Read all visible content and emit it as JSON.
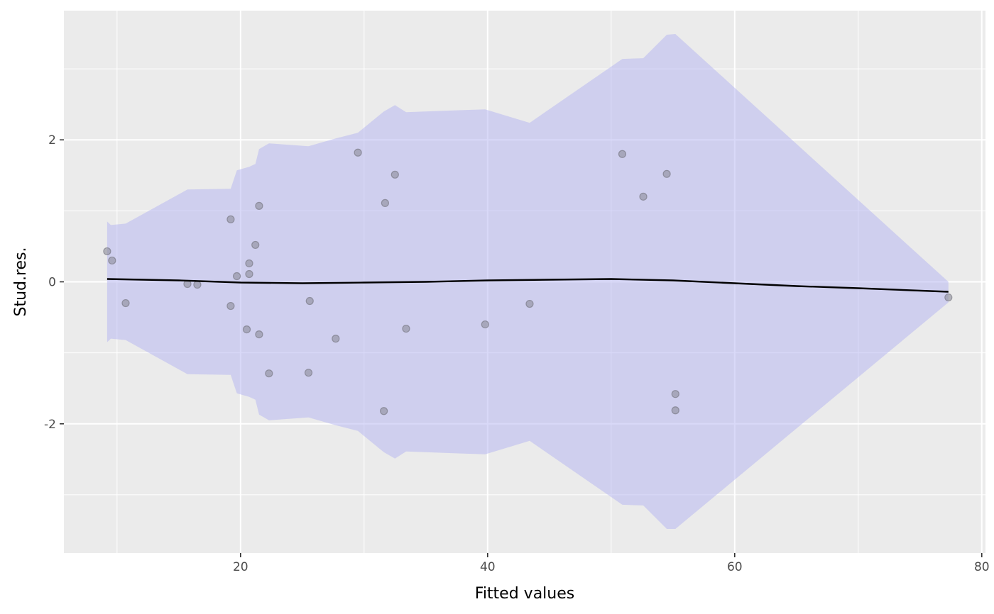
{
  "chart_data": {
    "type": "scatter",
    "title": "",
    "xlabel": "Fitted values",
    "ylabel": "Stud.res.",
    "xlim": [
      5.7,
      80.3
    ],
    "ylim": [
      -3.82,
      3.82
    ],
    "x_ticks": [
      {
        "value": 20,
        "label": "20"
      },
      {
        "value": 40,
        "label": "40"
      },
      {
        "value": 60,
        "label": "60"
      },
      {
        "value": 80,
        "label": "80"
      }
    ],
    "y_ticks": [
      {
        "value": -2,
        "label": "-2"
      },
      {
        "value": 0,
        "label": "0"
      },
      {
        "value": 2,
        "label": "2"
      }
    ],
    "x_minor_breaks": [
      10,
      30,
      50,
      70
    ],
    "y_minor_breaks": [
      -3,
      -1,
      1,
      3
    ],
    "grid": true,
    "colors": {
      "panel_background": "#ebebeb",
      "grid": "#ffffff",
      "points": "#8c8c99",
      "points_stroke": "#6f6f7a",
      "smooth_line": "#000000",
      "confidence_band": "#b3b3f2"
    },
    "points": [
      {
        "x": 9.2,
        "y": 0.43
      },
      {
        "x": 9.6,
        "y": 0.3
      },
      {
        "x": 10.7,
        "y": -0.3
      },
      {
        "x": 15.7,
        "y": -0.03
      },
      {
        "x": 16.5,
        "y": -0.04
      },
      {
        "x": 19.2,
        "y": 0.88
      },
      {
        "x": 19.2,
        "y": -0.34
      },
      {
        "x": 19.7,
        "y": 0.08
      },
      {
        "x": 20.5,
        "y": -0.67
      },
      {
        "x": 20.7,
        "y": 0.26
      },
      {
        "x": 20.7,
        "y": 0.11
      },
      {
        "x": 21.2,
        "y": 0.52
      },
      {
        "x": 21.5,
        "y": 1.07
      },
      {
        "x": 21.5,
        "y": -0.74
      },
      {
        "x": 22.3,
        "y": -1.29
      },
      {
        "x": 25.5,
        "y": -1.28
      },
      {
        "x": 25.6,
        "y": -0.27
      },
      {
        "x": 27.7,
        "y": -0.8
      },
      {
        "x": 29.5,
        "y": 1.82
      },
      {
        "x": 31.6,
        "y": -1.82
      },
      {
        "x": 31.7,
        "y": 1.11
      },
      {
        "x": 32.5,
        "y": 1.51
      },
      {
        "x": 33.4,
        "y": -0.66
      },
      {
        "x": 39.8,
        "y": -0.6
      },
      {
        "x": 43.4,
        "y": -0.31
      },
      {
        "x": 50.9,
        "y": 1.8
      },
      {
        "x": 52.6,
        "y": 1.2
      },
      {
        "x": 54.5,
        "y": 1.52
      },
      {
        "x": 55.2,
        "y": -1.58
      },
      {
        "x": 55.2,
        "y": -1.81
      },
      {
        "x": 77.3,
        "y": -0.22
      }
    ],
    "smooth_line": [
      {
        "x": 9.2,
        "y": 0.04
      },
      {
        "x": 15.0,
        "y": 0.02
      },
      {
        "x": 20.0,
        "y": -0.01
      },
      {
        "x": 25.0,
        "y": -0.02
      },
      {
        "x": 30.0,
        "y": -0.01
      },
      {
        "x": 35.0,
        "y": 0.0
      },
      {
        "x": 40.0,
        "y": 0.02
      },
      {
        "x": 45.0,
        "y": 0.03
      },
      {
        "x": 50.0,
        "y": 0.04
      },
      {
        "x": 55.0,
        "y": 0.02
      },
      {
        "x": 60.0,
        "y": -0.02
      },
      {
        "x": 65.0,
        "y": -0.06
      },
      {
        "x": 70.0,
        "y": -0.09
      },
      {
        "x": 77.3,
        "y": -0.14
      }
    ],
    "band_upper": [
      {
        "x": 9.2,
        "y": 0.85
      },
      {
        "x": 9.5,
        "y": 0.8
      },
      {
        "x": 10.7,
        "y": 0.82
      },
      {
        "x": 15.7,
        "y": 1.3
      },
      {
        "x": 19.2,
        "y": 1.31
      },
      {
        "x": 19.7,
        "y": 1.57
      },
      {
        "x": 20.7,
        "y": 1.62
      },
      {
        "x": 21.2,
        "y": 1.66
      },
      {
        "x": 21.5,
        "y": 1.87
      },
      {
        "x": 22.3,
        "y": 1.95
      },
      {
        "x": 25.5,
        "y": 1.91
      },
      {
        "x": 27.7,
        "y": 2.02
      },
      {
        "x": 29.5,
        "y": 2.1
      },
      {
        "x": 31.6,
        "y": 2.4
      },
      {
        "x": 32.5,
        "y": 2.49
      },
      {
        "x": 33.4,
        "y": 2.39
      },
      {
        "x": 39.8,
        "y": 2.43
      },
      {
        "x": 43.4,
        "y": 2.24
      },
      {
        "x": 50.9,
        "y": 3.14
      },
      {
        "x": 52.6,
        "y": 3.15
      },
      {
        "x": 54.5,
        "y": 3.48
      },
      {
        "x": 55.2,
        "y": 3.49
      },
      {
        "x": 77.3,
        "y": 0.0
      }
    ],
    "band_lower": [
      {
        "x": 77.3,
        "y": -0.29
      },
      {
        "x": 55.2,
        "y": -3.48
      },
      {
        "x": 54.5,
        "y": -3.48
      },
      {
        "x": 52.6,
        "y": -3.15
      },
      {
        "x": 50.9,
        "y": -3.14
      },
      {
        "x": 43.4,
        "y": -2.24
      },
      {
        "x": 39.8,
        "y": -2.43
      },
      {
        "x": 33.4,
        "y": -2.39
      },
      {
        "x": 32.5,
        "y": -2.49
      },
      {
        "x": 31.6,
        "y": -2.4
      },
      {
        "x": 29.5,
        "y": -2.1
      },
      {
        "x": 27.7,
        "y": -2.02
      },
      {
        "x": 25.5,
        "y": -1.91
      },
      {
        "x": 22.3,
        "y": -1.95
      },
      {
        "x": 21.5,
        "y": -1.87
      },
      {
        "x": 21.2,
        "y": -1.66
      },
      {
        "x": 20.7,
        "y": -1.62
      },
      {
        "x": 19.7,
        "y": -1.57
      },
      {
        "x": 19.2,
        "y": -1.31
      },
      {
        "x": 15.7,
        "y": -1.3
      },
      {
        "x": 10.7,
        "y": -0.82
      },
      {
        "x": 9.5,
        "y": -0.8
      },
      {
        "x": 9.2,
        "y": -0.85
      }
    ]
  }
}
